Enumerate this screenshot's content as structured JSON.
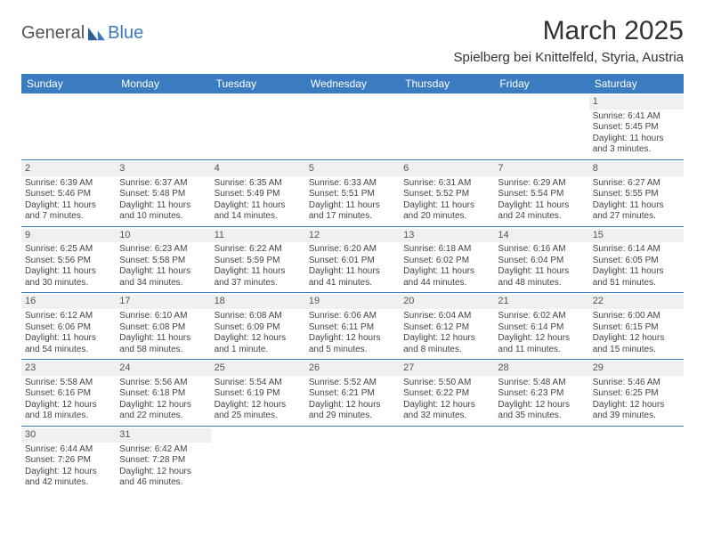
{
  "logo": {
    "part1": "General",
    "part2": "Blue"
  },
  "title": "March 2025",
  "location": "Spielberg bei Knittelfeld, Styria, Austria",
  "colors": {
    "header_bg": "#3b7bbf",
    "header_text": "#ffffff",
    "daynum_bg": "#eef0f2",
    "border": "#3b7bbf",
    "text": "#444444",
    "logo_gray": "#555555",
    "logo_blue": "#3b7bbf"
  },
  "weekdays": [
    "Sunday",
    "Monday",
    "Tuesday",
    "Wednesday",
    "Thursday",
    "Friday",
    "Saturday"
  ],
  "weeks": [
    [
      null,
      null,
      null,
      null,
      null,
      null,
      {
        "n": "1",
        "sr": "Sunrise: 6:41 AM",
        "ss": "Sunset: 5:45 PM",
        "dl": "Daylight: 11 hours and 3 minutes."
      }
    ],
    [
      {
        "n": "2",
        "sr": "Sunrise: 6:39 AM",
        "ss": "Sunset: 5:46 PM",
        "dl": "Daylight: 11 hours and 7 minutes."
      },
      {
        "n": "3",
        "sr": "Sunrise: 6:37 AM",
        "ss": "Sunset: 5:48 PM",
        "dl": "Daylight: 11 hours and 10 minutes."
      },
      {
        "n": "4",
        "sr": "Sunrise: 6:35 AM",
        "ss": "Sunset: 5:49 PM",
        "dl": "Daylight: 11 hours and 14 minutes."
      },
      {
        "n": "5",
        "sr": "Sunrise: 6:33 AM",
        "ss": "Sunset: 5:51 PM",
        "dl": "Daylight: 11 hours and 17 minutes."
      },
      {
        "n": "6",
        "sr": "Sunrise: 6:31 AM",
        "ss": "Sunset: 5:52 PM",
        "dl": "Daylight: 11 hours and 20 minutes."
      },
      {
        "n": "7",
        "sr": "Sunrise: 6:29 AM",
        "ss": "Sunset: 5:54 PM",
        "dl": "Daylight: 11 hours and 24 minutes."
      },
      {
        "n": "8",
        "sr": "Sunrise: 6:27 AM",
        "ss": "Sunset: 5:55 PM",
        "dl": "Daylight: 11 hours and 27 minutes."
      }
    ],
    [
      {
        "n": "9",
        "sr": "Sunrise: 6:25 AM",
        "ss": "Sunset: 5:56 PM",
        "dl": "Daylight: 11 hours and 30 minutes."
      },
      {
        "n": "10",
        "sr": "Sunrise: 6:23 AM",
        "ss": "Sunset: 5:58 PM",
        "dl": "Daylight: 11 hours and 34 minutes."
      },
      {
        "n": "11",
        "sr": "Sunrise: 6:22 AM",
        "ss": "Sunset: 5:59 PM",
        "dl": "Daylight: 11 hours and 37 minutes."
      },
      {
        "n": "12",
        "sr": "Sunrise: 6:20 AM",
        "ss": "Sunset: 6:01 PM",
        "dl": "Daylight: 11 hours and 41 minutes."
      },
      {
        "n": "13",
        "sr": "Sunrise: 6:18 AM",
        "ss": "Sunset: 6:02 PM",
        "dl": "Daylight: 11 hours and 44 minutes."
      },
      {
        "n": "14",
        "sr": "Sunrise: 6:16 AM",
        "ss": "Sunset: 6:04 PM",
        "dl": "Daylight: 11 hours and 48 minutes."
      },
      {
        "n": "15",
        "sr": "Sunrise: 6:14 AM",
        "ss": "Sunset: 6:05 PM",
        "dl": "Daylight: 11 hours and 51 minutes."
      }
    ],
    [
      {
        "n": "16",
        "sr": "Sunrise: 6:12 AM",
        "ss": "Sunset: 6:06 PM",
        "dl": "Daylight: 11 hours and 54 minutes."
      },
      {
        "n": "17",
        "sr": "Sunrise: 6:10 AM",
        "ss": "Sunset: 6:08 PM",
        "dl": "Daylight: 11 hours and 58 minutes."
      },
      {
        "n": "18",
        "sr": "Sunrise: 6:08 AM",
        "ss": "Sunset: 6:09 PM",
        "dl": "Daylight: 12 hours and 1 minute."
      },
      {
        "n": "19",
        "sr": "Sunrise: 6:06 AM",
        "ss": "Sunset: 6:11 PM",
        "dl": "Daylight: 12 hours and 5 minutes."
      },
      {
        "n": "20",
        "sr": "Sunrise: 6:04 AM",
        "ss": "Sunset: 6:12 PM",
        "dl": "Daylight: 12 hours and 8 minutes."
      },
      {
        "n": "21",
        "sr": "Sunrise: 6:02 AM",
        "ss": "Sunset: 6:14 PM",
        "dl": "Daylight: 12 hours and 11 minutes."
      },
      {
        "n": "22",
        "sr": "Sunrise: 6:00 AM",
        "ss": "Sunset: 6:15 PM",
        "dl": "Daylight: 12 hours and 15 minutes."
      }
    ],
    [
      {
        "n": "23",
        "sr": "Sunrise: 5:58 AM",
        "ss": "Sunset: 6:16 PM",
        "dl": "Daylight: 12 hours and 18 minutes."
      },
      {
        "n": "24",
        "sr": "Sunrise: 5:56 AM",
        "ss": "Sunset: 6:18 PM",
        "dl": "Daylight: 12 hours and 22 minutes."
      },
      {
        "n": "25",
        "sr": "Sunrise: 5:54 AM",
        "ss": "Sunset: 6:19 PM",
        "dl": "Daylight: 12 hours and 25 minutes."
      },
      {
        "n": "26",
        "sr": "Sunrise: 5:52 AM",
        "ss": "Sunset: 6:21 PM",
        "dl": "Daylight: 12 hours and 29 minutes."
      },
      {
        "n": "27",
        "sr": "Sunrise: 5:50 AM",
        "ss": "Sunset: 6:22 PM",
        "dl": "Daylight: 12 hours and 32 minutes."
      },
      {
        "n": "28",
        "sr": "Sunrise: 5:48 AM",
        "ss": "Sunset: 6:23 PM",
        "dl": "Daylight: 12 hours and 35 minutes."
      },
      {
        "n": "29",
        "sr": "Sunrise: 5:46 AM",
        "ss": "Sunset: 6:25 PM",
        "dl": "Daylight: 12 hours and 39 minutes."
      }
    ],
    [
      {
        "n": "30",
        "sr": "Sunrise: 6:44 AM",
        "ss": "Sunset: 7:26 PM",
        "dl": "Daylight: 12 hours and 42 minutes."
      },
      {
        "n": "31",
        "sr": "Sunrise: 6:42 AM",
        "ss": "Sunset: 7:28 PM",
        "dl": "Daylight: 12 hours and 46 minutes."
      },
      null,
      null,
      null,
      null,
      null
    ]
  ]
}
